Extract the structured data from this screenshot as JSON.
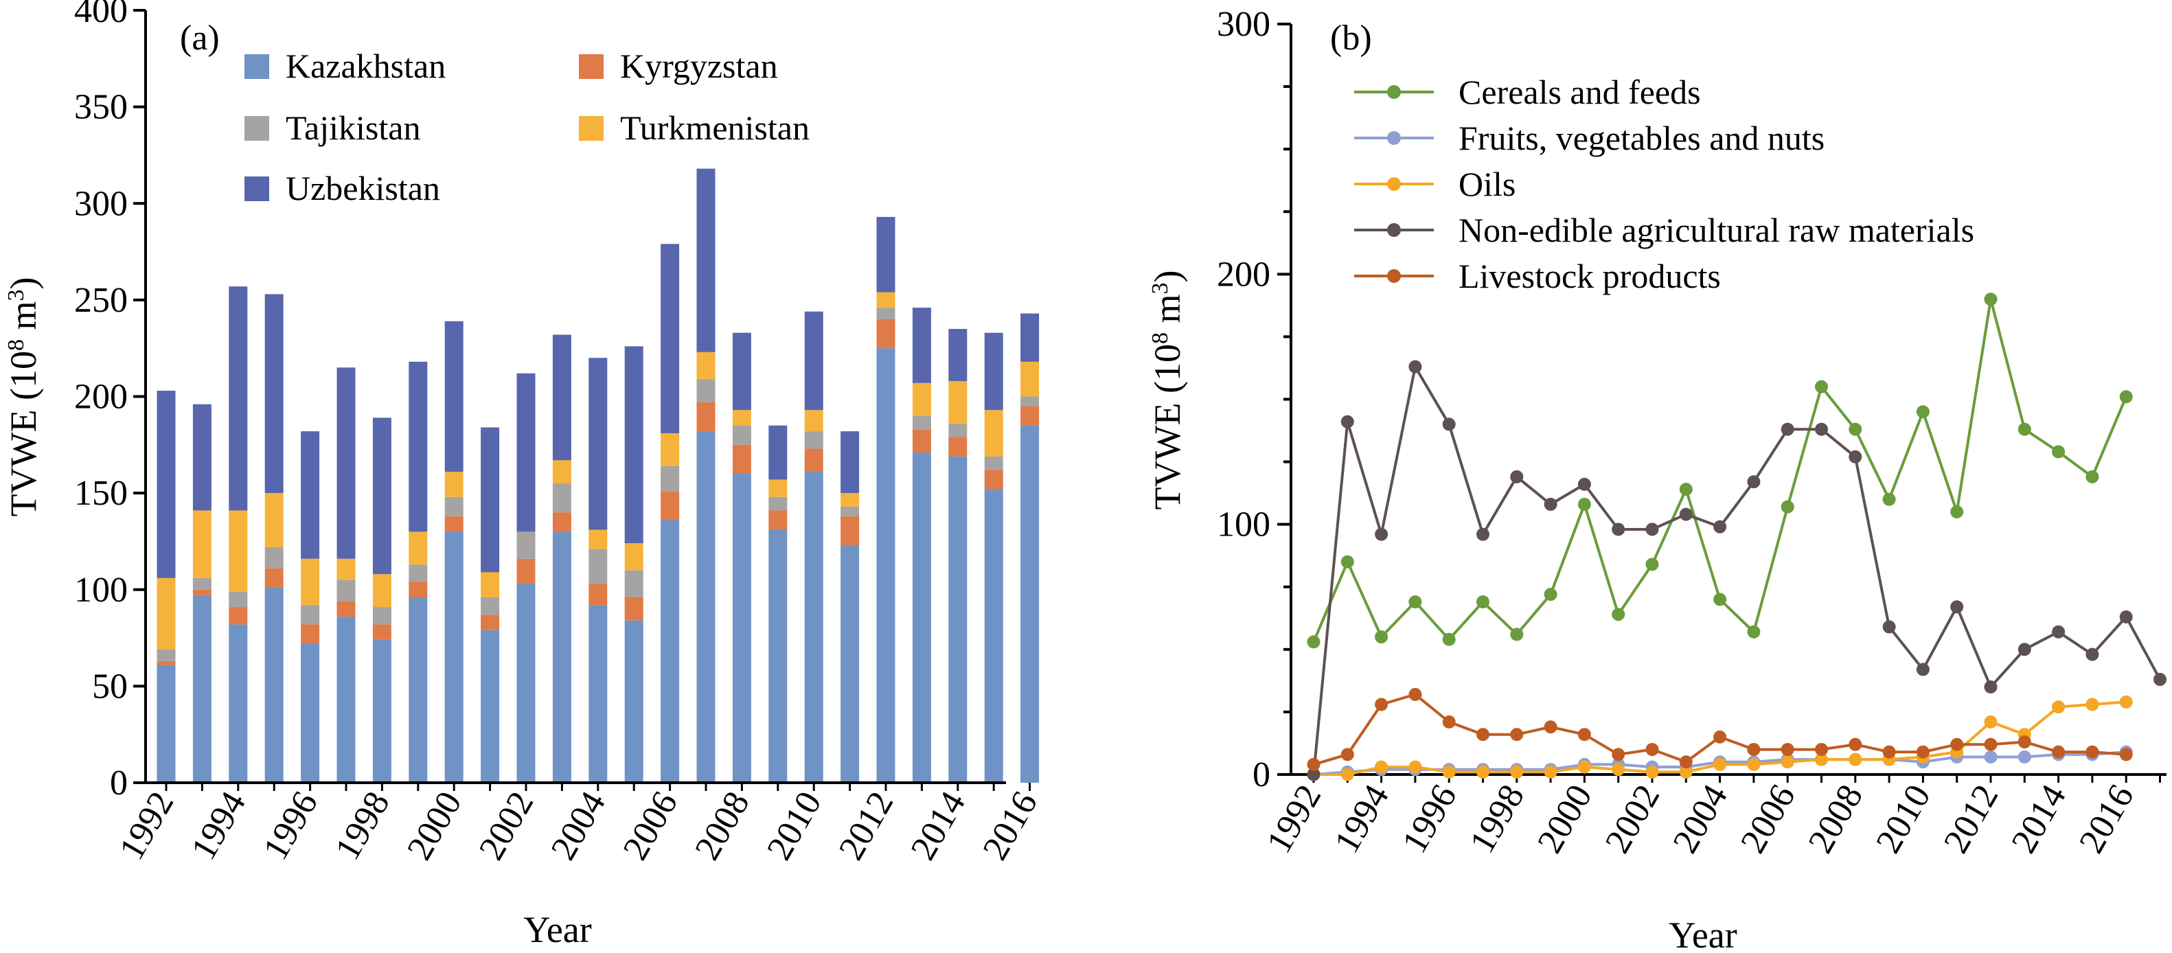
{
  "chart_data": [
    {
      "type": "bar",
      "stacked": true,
      "panel_label": "(a)",
      "xlabel": "Year",
      "ylabel": "TVWE (10",
      "ylabel_sup": "8",
      "ylabel_unit": " m",
      "ylabel_sup2": "3",
      "ylabel_close": ")",
      "ylim": [
        0,
        400
      ],
      "yticks": [
        0,
        50,
        100,
        150,
        200,
        250,
        300,
        350,
        400
      ],
      "xtick_labels": [
        "1992",
        "1994",
        "1996",
        "1998",
        "2000",
        "2002",
        "2004",
        "2006",
        "2008",
        "2010",
        "2012",
        "2014",
        "2016"
      ],
      "categories": [
        1992,
        1993,
        1994,
        1995,
        1996,
        1997,
        1998,
        1999,
        2000,
        2001,
        2002,
        2003,
        2004,
        2005,
        2006,
        2007,
        2008,
        2009,
        2010,
        2011,
        2012,
        2013,
        2014,
        2015,
        2016
      ],
      "legend_position": "top",
      "series": [
        {
          "name": "Kazakhstan",
          "color": "#6f93c4",
          "values": [
            61,
            97,
            82,
            101,
            72,
            86,
            74,
            96,
            130,
            79,
            103,
            130,
            92,
            84,
            136,
            182,
            160,
            131,
            161,
            123,
            225,
            171,
            169,
            152,
            185
          ]
        },
        {
          "name": "Kyrgyzstan",
          "color": "#e07b47",
          "values": [
            2,
            3,
            9,
            10,
            10,
            8,
            8,
            8,
            8,
            8,
            13,
            10,
            11,
            12,
            15,
            15,
            15,
            10,
            12,
            15,
            15,
            12,
            10,
            10,
            10
          ]
        },
        {
          "name": "Tajikistan",
          "color": "#a6a3a3",
          "values": [
            6,
            6,
            8,
            11,
            10,
            11,
            9,
            9,
            10,
            9,
            14,
            15,
            18,
            14,
            13,
            12,
            10,
            7,
            9,
            5,
            6,
            7,
            7,
            7,
            5
          ]
        },
        {
          "name": "Turkmenistan",
          "color": "#f6b33b",
          "values": [
            37,
            35,
            42,
            28,
            24,
            11,
            17,
            17,
            13,
            13,
            0,
            12,
            10,
            14,
            17,
            14,
            8,
            9,
            11,
            7,
            8,
            17,
            22,
            24,
            18
          ]
        },
        {
          "name": "Uzbekistan",
          "color": "#5766ad",
          "values": [
            97,
            55,
            116,
            103,
            66,
            99,
            81,
            88,
            78,
            75,
            82,
            65,
            89,
            102,
            98,
            95,
            40,
            28,
            51,
            32,
            39,
            39,
            27,
            40,
            25
          ]
        }
      ]
    },
    {
      "type": "line",
      "panel_label": "(b)",
      "xlabel": "Year",
      "ylabel": "TVWE (10",
      "ylabel_sup": "8",
      "ylabel_unit": " m",
      "ylabel_sup2": "3",
      "ylabel_close": ")",
      "ylim": [
        0,
        300
      ],
      "yticks": [
        0,
        100,
        200,
        300
      ],
      "xtick_labels": [
        "1992",
        "1994",
        "1996",
        "1998",
        "2000",
        "2002",
        "2004",
        "2006",
        "2008",
        "2010",
        "2012",
        "2014",
        "2016"
      ],
      "x": [
        1992,
        1993,
        1994,
        1995,
        1996,
        1997,
        1998,
        1999,
        2000,
        2001,
        2002,
        2003,
        2004,
        2005,
        2006,
        2007,
        2008,
        2009,
        2010,
        2011,
        2012,
        2013,
        2014,
        2015,
        2016,
        2017
      ],
      "legend_position": "top",
      "series": [
        {
          "name": "Cereals and feeds",
          "color": "#6a9c3c",
          "values": [
            53,
            85,
            55,
            69,
            54,
            69,
            56,
            72,
            108,
            64,
            84,
            114,
            70,
            57,
            107,
            155,
            138,
            110,
            145,
            105,
            190,
            138,
            129,
            119,
            151,
            null
          ]
        },
        {
          "name": "Fruits, vegetables and nuts",
          "color": "#8f9fd4",
          "values": [
            0,
            1,
            2,
            2,
            2,
            2,
            2,
            2,
            4,
            4,
            3,
            3,
            5,
            5,
            6,
            6,
            6,
            6,
            5,
            7,
            7,
            7,
            8,
            8,
            9,
            null
          ]
        },
        {
          "name": "Oils",
          "color": "#f5a623",
          "values": [
            0,
            0,
            3,
            3,
            1,
            1,
            1,
            1,
            3,
            2,
            1,
            1,
            4,
            4,
            5,
            6,
            6,
            6,
            7,
            9,
            21,
            16,
            27,
            28,
            29,
            null
          ]
        },
        {
          "name": "Non-edible agricultural raw materials",
          "color": "#5e5151",
          "values": [
            0,
            141,
            96,
            163,
            140,
            96,
            119,
            108,
            116,
            98,
            98,
            104,
            99,
            117,
            138,
            138,
            127,
            59,
            42,
            67,
            35,
            50,
            57,
            48,
            63,
            38
          ]
        },
        {
          "name": "Livestock products",
          "color": "#c05c22",
          "values": [
            4,
            8,
            28,
            32,
            21,
            16,
            16,
            19,
            16,
            8,
            10,
            5,
            15,
            10,
            10,
            10,
            12,
            9,
            9,
            12,
            12,
            13,
            9,
            9,
            8,
            null
          ]
        }
      ]
    }
  ]
}
